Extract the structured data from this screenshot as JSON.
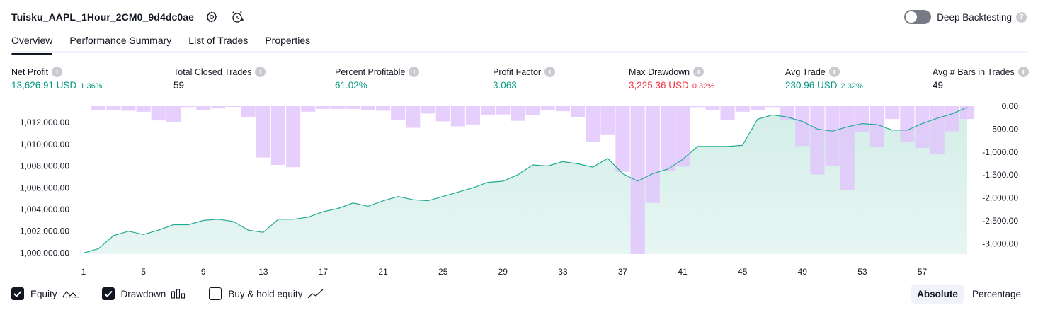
{
  "header": {
    "title": "Tuisku_AAPL_1Hour_2CM0_9d4dc0ae",
    "deep_backtesting_label": "Deep Backtesting",
    "deep_backtesting_enabled": false
  },
  "tabs": [
    {
      "label": "Overview",
      "active": true
    },
    {
      "label": "Performance Summary",
      "active": false
    },
    {
      "label": "List of Trades",
      "active": false
    },
    {
      "label": "Properties",
      "active": false
    }
  ],
  "stats": {
    "net_profit": {
      "label": "Net Profit",
      "value": "13,626.91 USD",
      "pct": "1.36%"
    },
    "total_closed_trades": {
      "label": "Total Closed Trades",
      "value": "59"
    },
    "percent_profitable": {
      "label": "Percent Profitable",
      "value": "61.02%"
    },
    "profit_factor": {
      "label": "Profit Factor",
      "value": "3.063"
    },
    "max_drawdown": {
      "label": "Max Drawdown",
      "value": "3,225.36 USD",
      "pct": "0.32%"
    },
    "avg_trade": {
      "label": "Avg Trade",
      "value": "230.96 USD",
      "pct": "2.32%"
    },
    "avg_bars": {
      "label": "Avg # Bars in Trades",
      "value": "49"
    }
  },
  "footer": {
    "equity_label": "Equity",
    "equity_checked": true,
    "drawdown_label": "Drawdown",
    "drawdown_checked": true,
    "buy_hold_label": "Buy & hold equity",
    "buy_hold_checked": false,
    "absolute_label": "Absolute",
    "percentage_label": "Percentage"
  },
  "colors": {
    "equity_line": "#22ab94",
    "equity_fill": "#d3eee8",
    "drawdown_bar": "#e1c5fb",
    "green": "#089981",
    "red": "#f23645"
  },
  "chart_data": {
    "type": "area",
    "x_ticks": [
      "1",
      "5",
      "9",
      "13",
      "17",
      "21",
      "25",
      "29",
      "33",
      "37",
      "41",
      "45",
      "49",
      "53",
      "57"
    ],
    "left_ticks": [
      "1,012,000.00",
      "1,010,000.00",
      "1,008,000.00",
      "1,006,000.00",
      "1,004,000.00",
      "1,002,000.00",
      "1,000,000.00"
    ],
    "right_ticks": [
      "0.00",
      "-500.00",
      "-1,000.00",
      "-1,500.00",
      "-2,000.00",
      "-2,500.00",
      "-3,000.00"
    ],
    "x_range": [
      1,
      60
    ],
    "equity_ylim": [
      999900,
      1013500
    ],
    "drawdown_ylim": [
      -3225,
      0
    ],
    "series": [
      {
        "name": "Equity",
        "type": "area",
        "values": [
          1000000,
          1000400,
          1001600,
          1002000,
          1001700,
          1002100,
          1002600,
          1002600,
          1003000,
          1003100,
          1002900,
          1002100,
          1001900,
          1003100,
          1003100,
          1003300,
          1003800,
          1004100,
          1004600,
          1004300,
          1004800,
          1005200,
          1004900,
          1004800,
          1005200,
          1005600,
          1006000,
          1006500,
          1006600,
          1007200,
          1008100,
          1008000,
          1008400,
          1008200,
          1007900,
          1008700,
          1007300,
          1006600,
          1007300,
          1007700,
          1008600,
          1009800,
          1009800,
          1009800,
          1009900,
          1012300,
          1012700,
          1012500,
          1012100,
          1011400,
          1011200,
          1011600,
          1011900,
          1011800,
          1011300,
          1011300,
          1011900,
          1012400,
          1012800,
          1013400
        ]
      },
      {
        "name": "Drawdown",
        "type": "bar",
        "values": [
          0,
          -80,
          -80,
          -100,
          -120,
          -310,
          -340,
          -20,
          -80,
          -50,
          -10,
          -240,
          -1120,
          -1280,
          -1330,
          -120,
          -60,
          -60,
          -60,
          -80,
          -100,
          -300,
          -470,
          -160,
          -330,
          -440,
          -400,
          -200,
          -180,
          -320,
          -200,
          -80,
          -110,
          -240,
          -780,
          -630,
          -1430,
          -3225,
          -2110,
          -1420,
          -1320,
          -20,
          -80,
          -300,
          -120,
          -80,
          -20,
          -300,
          -870,
          -1490,
          -1310,
          -1820,
          -570,
          -890,
          -280,
          -780,
          -910,
          -1050,
          -550,
          -280
        ]
      }
    ]
  }
}
